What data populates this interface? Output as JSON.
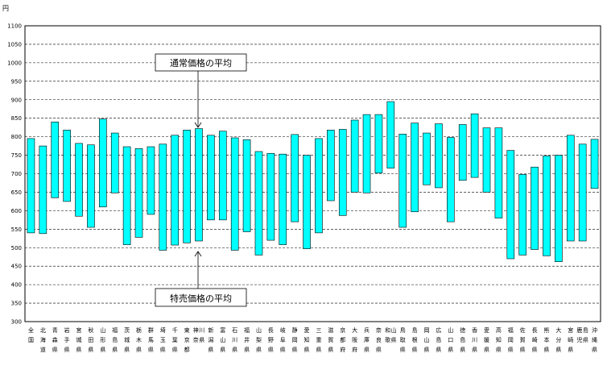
{
  "chart_data": {
    "type": "bar",
    "subtype": "floating-range",
    "unit_label": "円",
    "ylim": [
      300,
      1100
    ],
    "y_ticks": [
      300,
      350,
      400,
      450,
      500,
      550,
      600,
      650,
      700,
      750,
      800,
      850,
      900,
      950,
      1000,
      1050,
      1100
    ],
    "y_tick_labels": [
      "300",
      "350",
      "400",
      "450",
      "500",
      "550",
      "600",
      "650",
      "700",
      "750",
      "800",
      "850",
      "900",
      "950",
      "1000",
      "1050",
      "1100"
    ],
    "grid": "horizontal dashed",
    "bar_color": "#00ffff",
    "categories": [
      "全国",
      "北海道",
      "青森県",
      "岩手県",
      "宮城県",
      "秋田県",
      "山形県",
      "福島県",
      "茨城県",
      "栃木県",
      "群馬県",
      "埼玉県",
      "千葉県",
      "東京都",
      "神奈川県",
      "新潟県",
      "富山県",
      "石川県",
      "福井県",
      "山梨県",
      "長野県",
      "岐阜県",
      "静岡県",
      "愛知県",
      "三重県",
      "滋賀県",
      "京都府",
      "大阪府",
      "兵庫県",
      "奈良県",
      "和歌山県",
      "鳥取県",
      "島根県",
      "岡山県",
      "広島県",
      "山口県",
      "徳島県",
      "香川県",
      "愛媛県",
      "高知県",
      "福岡県",
      "佐賀県",
      "長崎県",
      "熊本県",
      "大分県",
      "宮崎県",
      "鹿児島県",
      "沖縄県"
    ],
    "series": [
      {
        "name": "特売価格の平均",
        "values": [
          540,
          538,
          635,
          625,
          585,
          555,
          610,
          648,
          508,
          528,
          590,
          493,
          507,
          513,
          518,
          575,
          575,
          493,
          543,
          480,
          520,
          508,
          570,
          497,
          540,
          627,
          587,
          650,
          648,
          702,
          715,
          555,
          597,
          670,
          662,
          570,
          682,
          690,
          650,
          580,
          470,
          480,
          495,
          478,
          462,
          518,
          518,
          660
        ]
      },
      {
        "name": "通常価格の平均",
        "values": [
          795,
          775,
          840,
          818,
          782,
          778,
          848,
          810,
          773,
          768,
          773,
          780,
          804,
          818,
          822,
          804,
          815,
          797,
          792,
          760,
          755,
          753,
          806,
          750,
          795,
          818,
          820,
          845,
          860,
          860,
          895,
          807,
          837,
          810,
          835,
          798,
          833,
          862,
          824,
          824,
          763,
          698,
          718,
          748,
          750,
          804,
          780,
          793
        ]
      }
    ],
    "annotations": {
      "regular": "通常価格の平均",
      "sale": "特売価格の平均"
    }
  }
}
